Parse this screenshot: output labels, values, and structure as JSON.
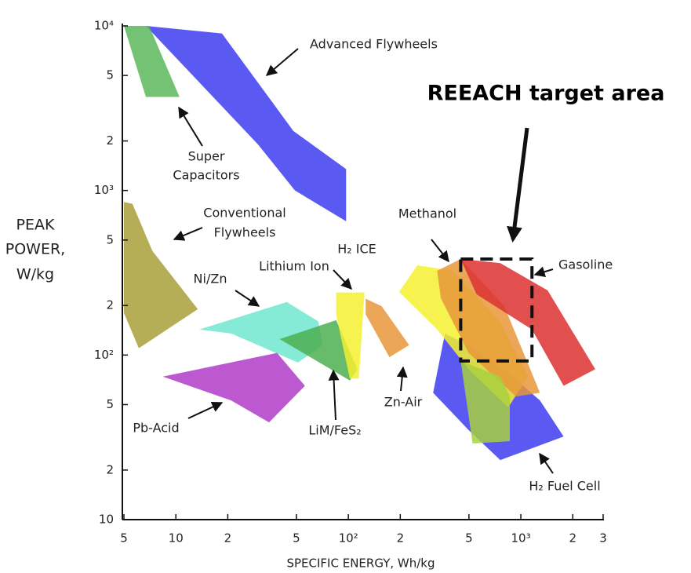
{
  "chart_data": {
    "type": "region",
    "xlabel": "SPECIFIC ENERGY, Wh/kg",
    "ylabel": [
      "PEAK",
      "POWER,",
      "W/kg"
    ],
    "log_x": true,
    "log_y": true,
    "xlim": [
      5,
      3000
    ],
    "ylim": [
      10,
      10000
    ],
    "xticks": [
      5,
      10,
      {
        "value": 20,
        "label": "2"
      },
      {
        "value": 50,
        "label": "5"
      },
      {
        "value": 100,
        "label": "10²"
      },
      {
        "value": 200,
        "label": "2"
      },
      {
        "value": 500,
        "label": "5"
      },
      {
        "value": 1000,
        "label": "10³"
      },
      {
        "value": 2000,
        "label": "2"
      },
      {
        "value": 3000,
        "label": "3"
      }
    ],
    "yticks": [
      10,
      {
        "value": 20,
        "label": "2"
      },
      {
        "value": 50,
        "label": "5"
      },
      {
        "value": 100,
        "label": "10²"
      },
      {
        "value": 200,
        "label": "2"
      },
      {
        "value": 500,
        "label": "5"
      },
      {
        "value": 1000,
        "label": "10³"
      },
      {
        "value": 2000,
        "label": "2"
      },
      {
        "value": 5000,
        "label": "5"
      },
      {
        "value": 10000,
        "label": "10⁴"
      }
    ],
    "regions": [
      {
        "color": "#3d3df0",
        "x": [
          6.7,
          18.5,
          48,
          97,
          97,
          49,
          30
        ],
        "y": [
          10000,
          9000,
          2300,
          1350,
          650,
          1000,
          1900
        ]
      },
      {
        "color": "#5cb85c",
        "x": [
          5,
          7,
          10.5,
          6.7
        ],
        "y": [
          10000,
          10000,
          3700,
          3700
        ]
      },
      {
        "color": "#a8a03a",
        "x": [
          5,
          5.6,
          7.3,
          13.4,
          6.1,
          5
        ],
        "y": [
          850,
          830,
          430,
          190,
          110,
          180
        ]
      },
      {
        "color": "#70e8d0",
        "x": [
          13.7,
          44,
          67,
          71,
          51,
          21
        ],
        "y": [
          143,
          210,
          160,
          115,
          90,
          135
        ]
      },
      {
        "color": "#b23cc8",
        "x": [
          8.4,
          38.6,
          56,
          34.7,
          20.9
        ],
        "y": [
          74,
          103,
          65,
          39,
          53
        ]
      },
      {
        "color": "#4caf50",
        "x": [
          40,
          85,
          113,
          102
        ],
        "y": [
          125,
          163,
          82,
          70
        ]
      },
      {
        "color": "#f5f030",
        "x": [
          85,
          124,
          115,
          102,
          85
        ],
        "y": [
          240,
          240,
          72,
          72,
          175
        ]
      },
      {
        "color": "#e8963a",
        "x": [
          126,
          156,
          225,
          173,
          126
        ],
        "y": [
          220,
          198,
          115,
          97,
          177
        ]
      },
      {
        "color": "#3d3df0",
        "x": [
          363,
          498,
          845,
          1290,
          1770,
          760,
          498,
          310
        ],
        "y": [
          135,
          115,
          78,
          53,
          32,
          23,
          35,
          59
        ]
      },
      {
        "color": "#f5f030",
        "x": [
          197,
          251,
          403,
          760,
          1100,
          845,
          498,
          327
        ],
        "y": [
          242,
          351,
          325,
          159,
          74,
          48,
          82,
          143
        ]
      },
      {
        "color": "#e8963a",
        "x": [
          327,
          448,
          802,
          1290,
          938,
          498,
          344
        ],
        "y": [
          325,
          383,
          198,
          59,
          56,
          103,
          221
        ]
      },
      {
        "color": "#dd3030",
        "x": [
          448,
          760,
          1430,
          2700,
          1770,
          1160,
          553
        ],
        "y": [
          383,
          362,
          247,
          82,
          65,
          143,
          234
        ]
      },
      {
        "color": "#a8d040",
        "x": [
          448,
          760,
          863,
          863,
          525
        ],
        "y": [
          92,
          74,
          56,
          30,
          29
        ]
      }
    ],
    "annotations": [
      "Advanced Flywheels",
      "Super",
      "Capacitors",
      "Conventional",
      "Flywheels",
      "Methanol",
      "Ni/Zn",
      "Lithium Ion",
      "H₂ ICE",
      "Gasoline",
      "Pb-Acid",
      "LiM/FeS₂",
      "Zn-Air",
      "H₂ Fuel Cell"
    ],
    "target": {
      "label": "REEACH target area",
      "x": [
        448,
        1160
      ],
      "y": [
        92,
        383
      ]
    }
  }
}
